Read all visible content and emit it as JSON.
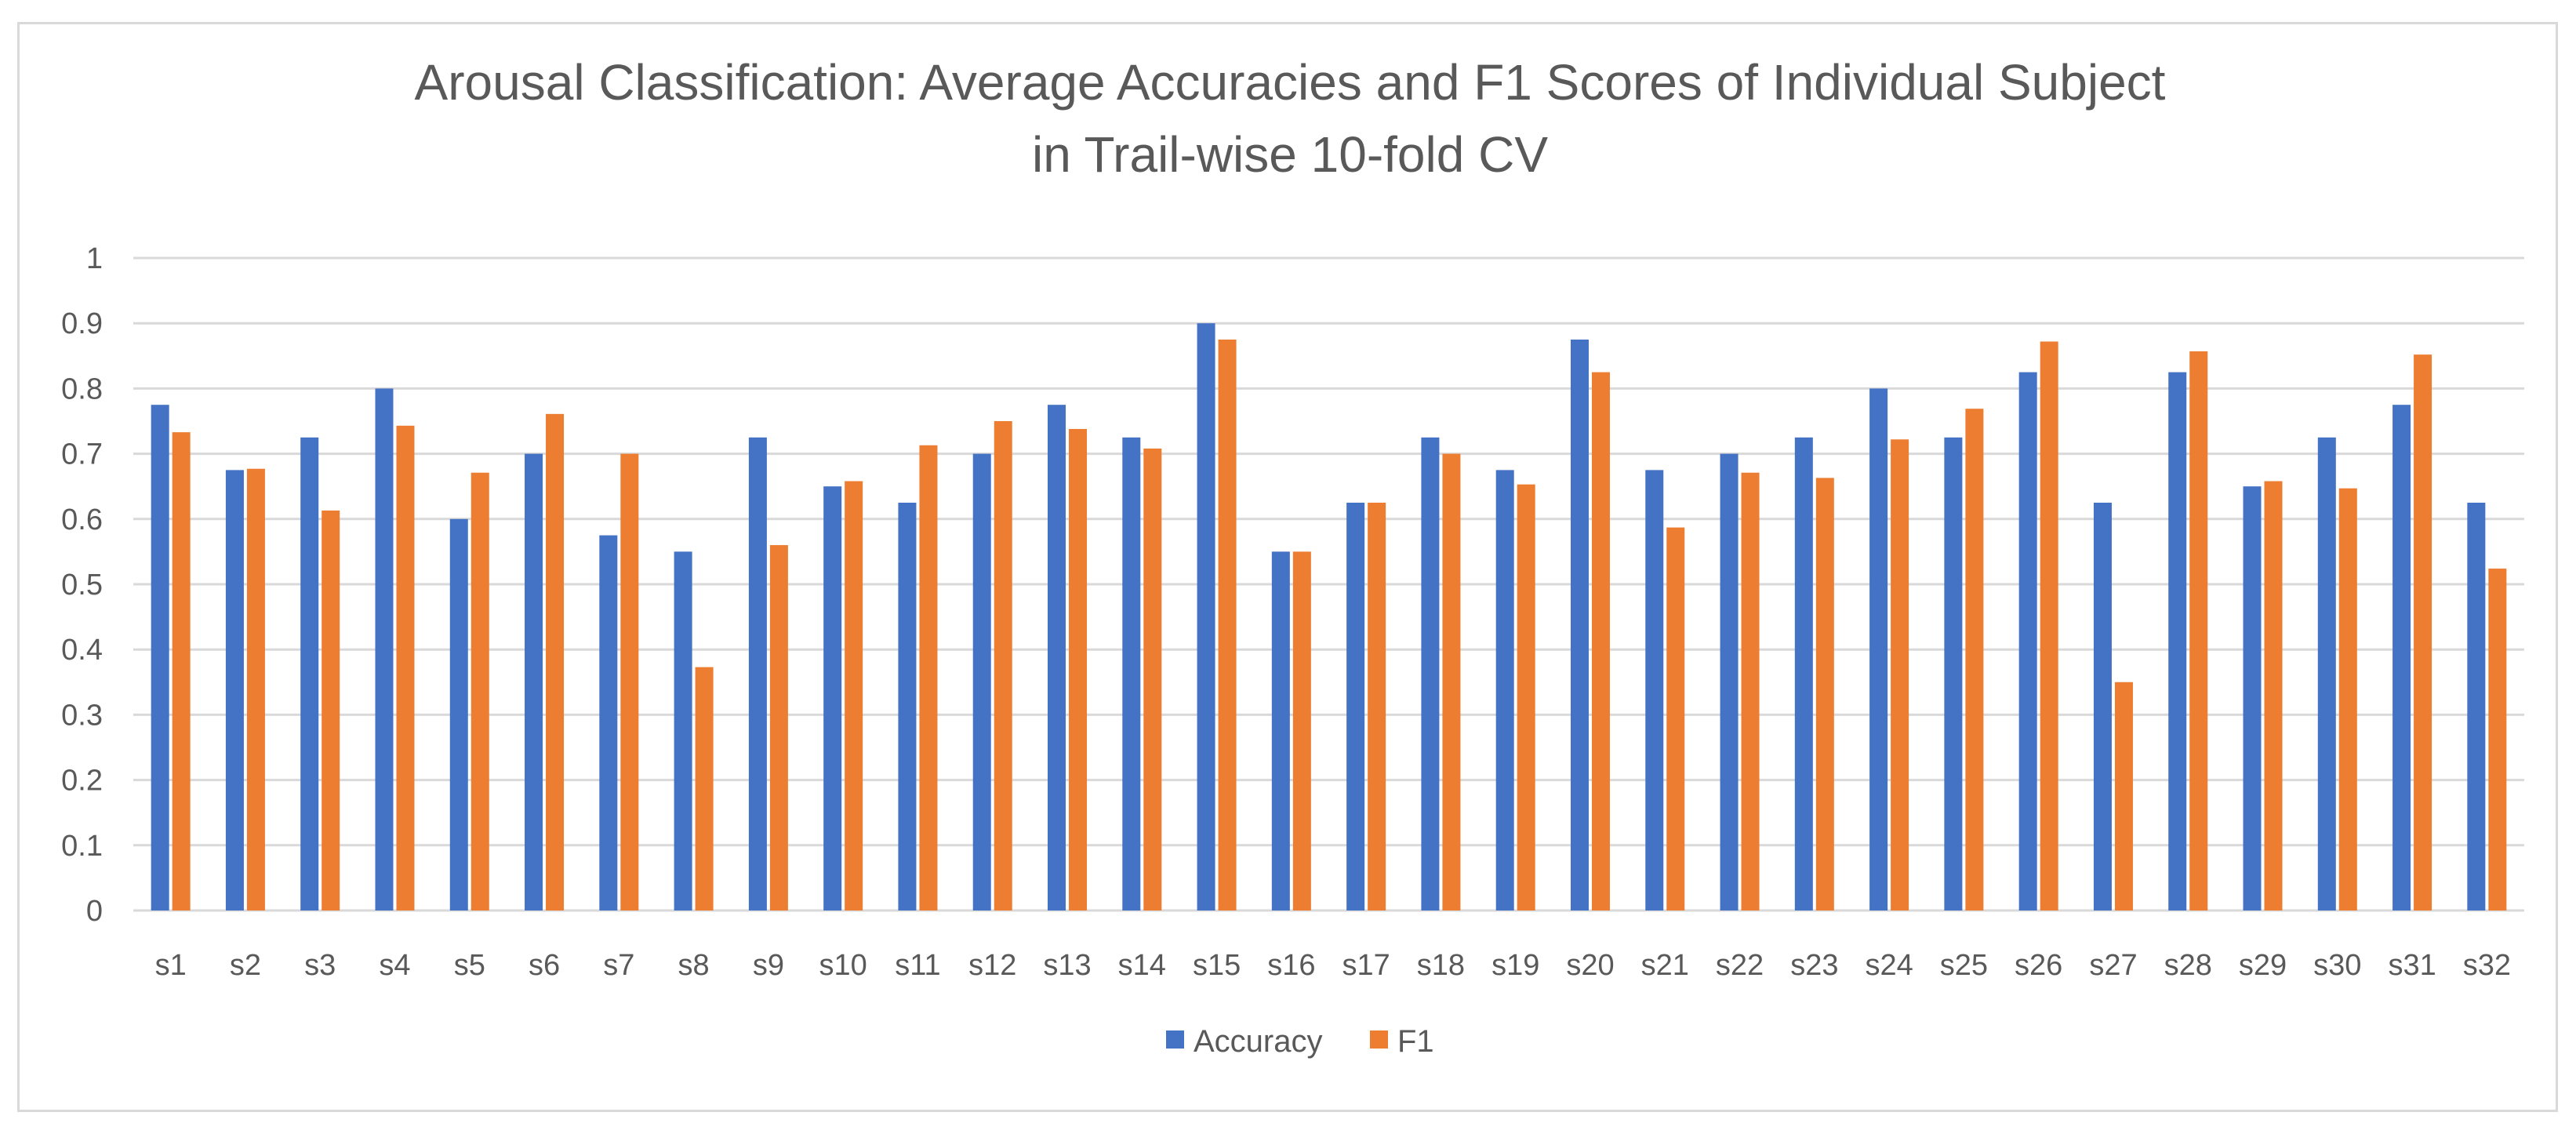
{
  "chart_data": {
    "type": "bar",
    "title_lines": [
      "Arousal Classification: Average Accuracies and F1 Scores of Individual Subject",
      "in Trail-wise 10-fold CV"
    ],
    "xlabel": "",
    "ylabel": "",
    "ylim": [
      0,
      1
    ],
    "yticks": [
      "0",
      "0.1",
      "0.2",
      "0.3",
      "0.4",
      "0.5",
      "0.6",
      "0.7",
      "0.8",
      "0.9",
      "1"
    ],
    "grid": true,
    "legend_position": "bottom",
    "categories": [
      "s1",
      "s2",
      "s3",
      "s4",
      "s5",
      "s6",
      "s7",
      "s8",
      "s9",
      "s10",
      "s11",
      "s12",
      "s13",
      "s14",
      "s15",
      "s16",
      "s17",
      "s18",
      "s19",
      "s20",
      "s21",
      "s22",
      "s23",
      "s24",
      "s25",
      "s26",
      "s27",
      "s28",
      "s29",
      "s30",
      "s31",
      "s32"
    ],
    "series": [
      {
        "name": "Accuracy",
        "color": "#4472c4",
        "values": [
          0.775,
          0.675,
          0.725,
          0.8,
          0.6,
          0.7,
          0.575,
          0.55,
          0.725,
          0.65,
          0.625,
          0.7,
          0.775,
          0.725,
          0.9,
          0.55,
          0.625,
          0.725,
          0.675,
          0.875,
          0.675,
          0.7,
          0.725,
          0.8,
          0.725,
          0.825,
          0.625,
          0.825,
          0.65,
          0.725,
          0.775,
          0.625
        ]
      },
      {
        "name": "F1",
        "color": "#ed7d31",
        "values": [
          0.733,
          0.677,
          0.613,
          0.743,
          0.671,
          0.761,
          0.7,
          0.373,
          0.56,
          0.658,
          0.713,
          0.75,
          0.738,
          0.708,
          0.875,
          0.55,
          0.625,
          0.7,
          0.653,
          0.825,
          0.587,
          0.671,
          0.663,
          0.722,
          0.769,
          0.872,
          0.35,
          0.857,
          0.658,
          0.647,
          0.852,
          0.524
        ]
      }
    ]
  }
}
